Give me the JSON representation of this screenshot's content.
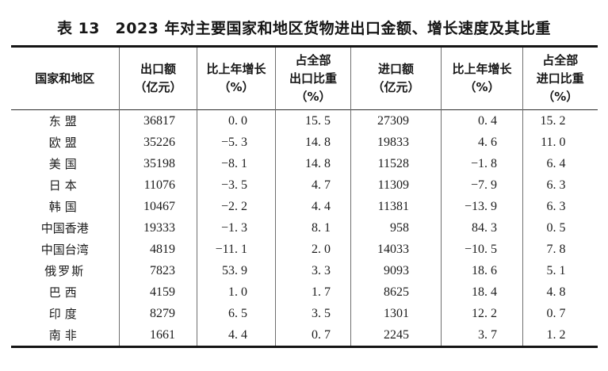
{
  "title": "表 13　2023 年对主要国家和地区货物进出口金额、增长速度及其比重",
  "colors": {
    "text": "#1c1c1c",
    "thick_rule": "#141414",
    "thin_rule": "#2b2b2b",
    "column_separator": "#6f6f6f",
    "background": "#ffffff"
  },
  "table": {
    "columns": [
      {
        "id": "region",
        "lines": [
          "国家和地区"
        ]
      },
      {
        "id": "export-value",
        "lines": [
          "出口额",
          "（亿元）"
        ]
      },
      {
        "id": "export-growth",
        "lines": [
          "比上年增长",
          "（%）"
        ]
      },
      {
        "id": "export-share",
        "lines": [
          "占全部",
          "出口比重",
          "（%）"
        ]
      },
      {
        "id": "import-value",
        "lines": [
          "进口额",
          "（亿元）"
        ]
      },
      {
        "id": "import-growth",
        "lines": [
          "比上年增长",
          "（%）"
        ]
      },
      {
        "id": "import-share",
        "lines": [
          "占全部",
          "进口比重",
          "（%）"
        ]
      }
    ],
    "rows": [
      {
        "region": "东盟",
        "values": [
          "36817",
          "0. 0",
          "15. 5",
          "27309",
          "0. 4",
          "15. 2"
        ]
      },
      {
        "region": "欧盟",
        "values": [
          "35226",
          "−5. 3",
          "14. 8",
          "19833",
          "4. 6",
          "11. 0"
        ]
      },
      {
        "region": "美国",
        "values": [
          "35198",
          "−8. 1",
          "14. 8",
          "11528",
          "−1. 8",
          "6. 4"
        ]
      },
      {
        "region": "日本",
        "values": [
          "11076",
          "−3. 5",
          "4. 7",
          "11309",
          "−7. 9",
          "6. 3"
        ]
      },
      {
        "region": "韩国",
        "values": [
          "10467",
          "−2. 2",
          "4. 4",
          "11381",
          "−13. 9",
          "6. 3"
        ]
      },
      {
        "region": "中国香港",
        "values": [
          "19333",
          "−1. 3",
          "8. 1",
          "958",
          "84. 3",
          "0. 5"
        ]
      },
      {
        "region": "中国台湾",
        "values": [
          "4819",
          "−11. 1",
          "2. 0",
          "14033",
          "−10. 5",
          "7. 8"
        ]
      },
      {
        "region": "俄罗斯",
        "values": [
          "7823",
          "53. 9",
          "3. 3",
          "9093",
          "18. 6",
          "5. 1"
        ]
      },
      {
        "region": "巴西",
        "values": [
          "4159",
          "1. 0",
          "1. 7",
          "8625",
          "18. 4",
          "4. 8"
        ]
      },
      {
        "region": "印度",
        "values": [
          "8279",
          "6. 5",
          "3. 5",
          "1301",
          "12. 2",
          "0. 7"
        ]
      },
      {
        "region": "南非",
        "values": [
          "1661",
          "4. 4",
          "0. 7",
          "2245",
          "3. 7",
          "1. 2"
        ]
      }
    ]
  }
}
